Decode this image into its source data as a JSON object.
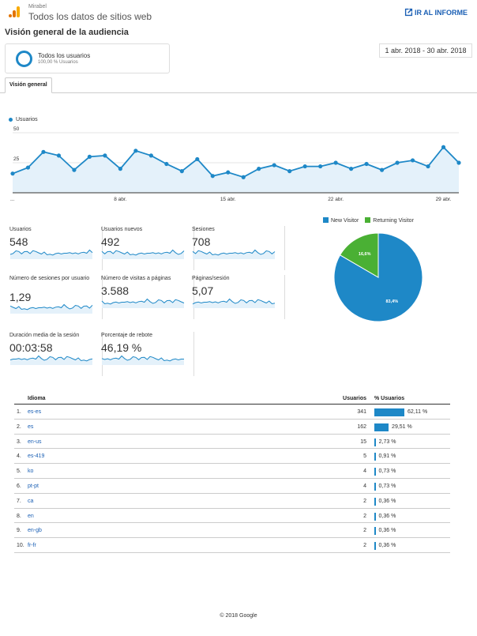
{
  "header": {
    "account": "Mirabel",
    "property": "Todos los datos de sitios web",
    "report_link": "IR AL INFORME"
  },
  "page_title": "Visión general de la audiencia",
  "segment": {
    "name": "Todos los usuarios",
    "sub": "100,00 % Usuarios"
  },
  "date_range": "1 abr. 2018 - 30 abr. 2018",
  "tabs": [
    {
      "label": "Visión general"
    }
  ],
  "colors": {
    "accent": "#1e88c7",
    "returning": "#4ab034",
    "link": "#1a5fb4"
  },
  "chart_data": [
    {
      "type": "area",
      "series": [
        {
          "name": "Usuarios",
          "values": [
            16,
            21,
            34,
            31,
            19,
            30,
            31,
            20,
            35,
            31,
            24,
            18,
            28,
            14,
            17,
            13,
            20,
            23,
            18,
            22,
            22,
            25,
            20,
            24,
            19,
            25,
            27,
            22,
            38,
            25
          ]
        }
      ],
      "x_tick_labels": [
        "...",
        "8 abr.",
        "15 abr.",
        "22 abr.",
        "29 abr."
      ],
      "x_tick_days": [
        1,
        8,
        15,
        22,
        29
      ],
      "y_ticks": [
        25,
        50
      ],
      "ylim": [
        0,
        50
      ]
    },
    {
      "type": "pie",
      "series": [
        {
          "name": "New Visitor",
          "value": 83.4,
          "label": "83,4%",
          "color": "#1e88c7"
        },
        {
          "name": "Returning Visitor",
          "value": 16.6,
          "label": "16,6%",
          "color": "#4ab034"
        }
      ]
    }
  ],
  "metrics": [
    {
      "label": "Usuarios",
      "value": "548"
    },
    {
      "label": "Usuarios nuevos",
      "value": "492"
    },
    {
      "label": "Sesiones",
      "value": "708"
    },
    {
      "label": "Número de sesiones por usuario",
      "value": "1,29"
    },
    {
      "label": "Número de visitas a páginas",
      "value": "3.588"
    },
    {
      "label": "Páginas/sesión",
      "value": "5,07"
    },
    {
      "label": "Duración media de la sesión",
      "value": "00:03:58"
    },
    {
      "label": "Porcentaje de rebote",
      "value": "46,19 %"
    }
  ],
  "table": {
    "headers": {
      "language": "Idioma",
      "users": "Usuarios",
      "pct": "% Usuarios"
    },
    "rows": [
      {
        "idx": "1.",
        "lang": "es-es",
        "users": "341",
        "pct": "62,11 %",
        "pct_value": 62.11
      },
      {
        "idx": "2.",
        "lang": "es",
        "users": "162",
        "pct": "29,51 %",
        "pct_value": 29.51
      },
      {
        "idx": "3.",
        "lang": "en-us",
        "users": "15",
        "pct": "2,73 %",
        "pct_value": 2.73
      },
      {
        "idx": "4.",
        "lang": "es-419",
        "users": "5",
        "pct": "0,91 %",
        "pct_value": 0.91
      },
      {
        "idx": "5.",
        "lang": "ko",
        "users": "4",
        "pct": "0,73 %",
        "pct_value": 0.73
      },
      {
        "idx": "6.",
        "lang": "pt-pt",
        "users": "4",
        "pct": "0,73 %",
        "pct_value": 0.73
      },
      {
        "idx": "7.",
        "lang": "ca",
        "users": "2",
        "pct": "0,36 %",
        "pct_value": 0.36
      },
      {
        "idx": "8.",
        "lang": "en",
        "users": "2",
        "pct": "0,36 %",
        "pct_value": 0.36
      },
      {
        "idx": "9.",
        "lang": "en-gb",
        "users": "2",
        "pct": "0,36 %",
        "pct_value": 0.36
      },
      {
        "idx": "10.",
        "lang": "fr-fr",
        "users": "2",
        "pct": "0,36 %",
        "pct_value": 0.36
      }
    ]
  },
  "footer": "© 2018 Google"
}
